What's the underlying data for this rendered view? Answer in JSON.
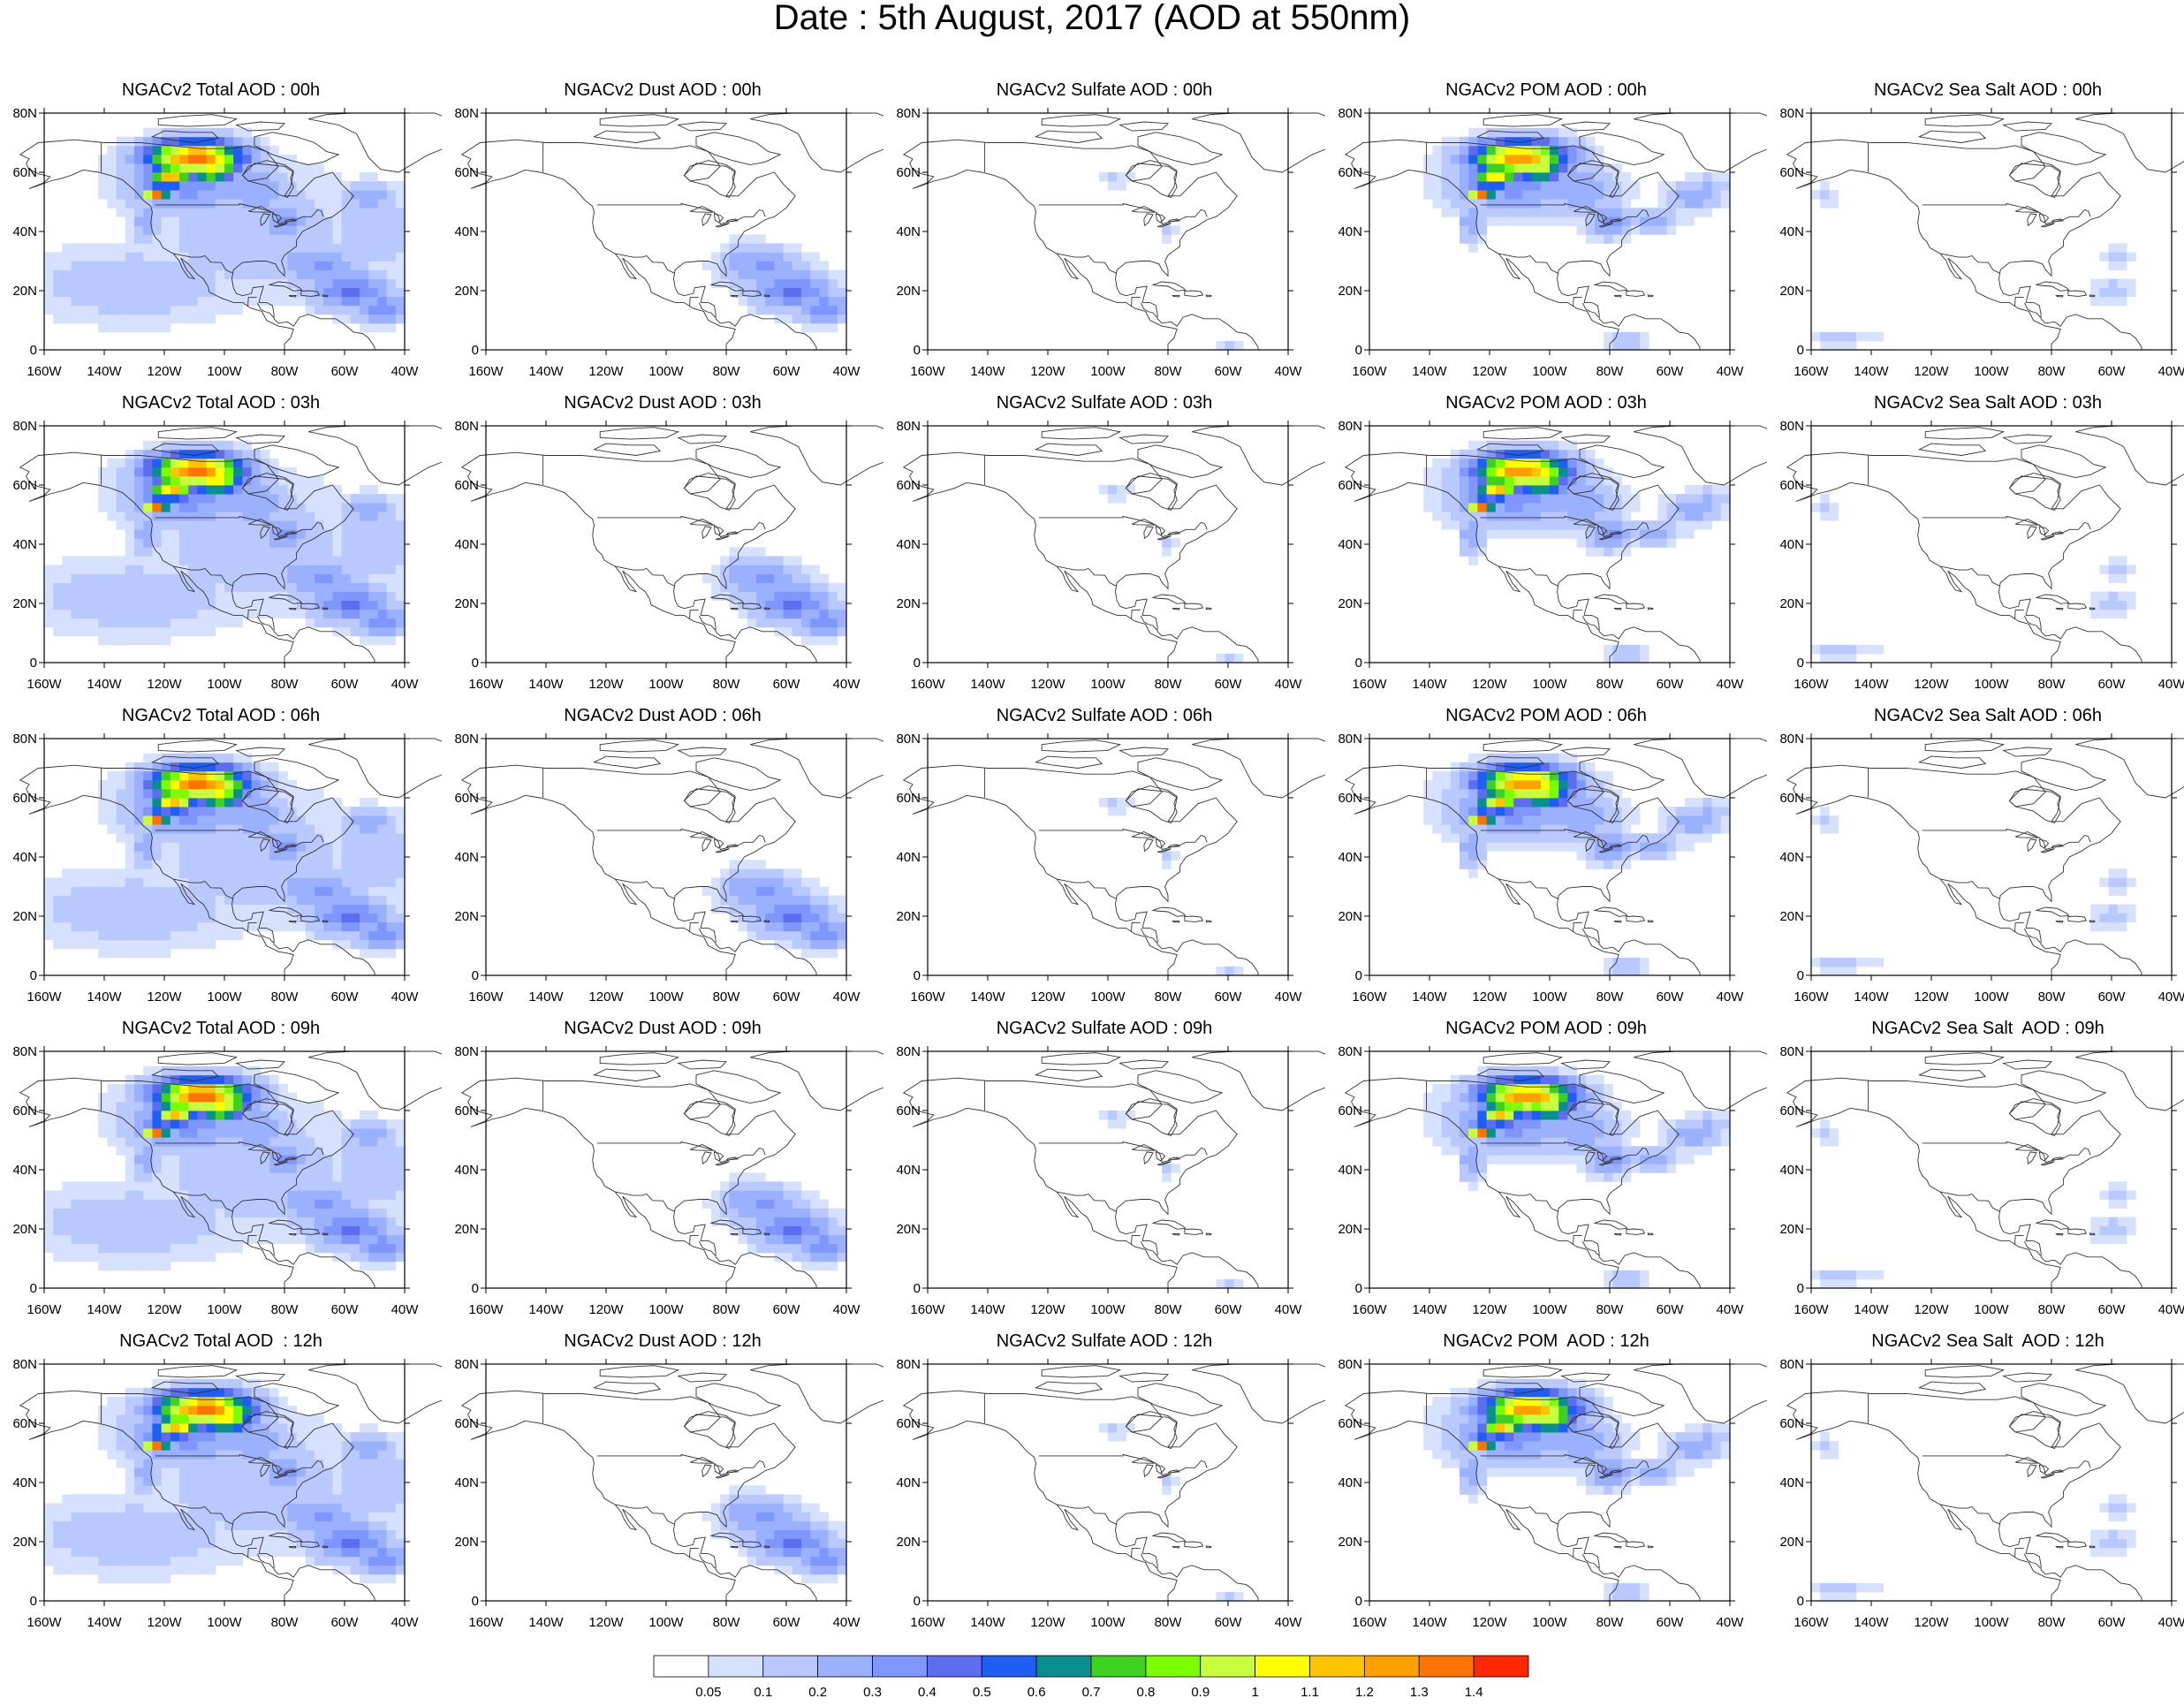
{
  "title": "Date : 5th August, 2017 (AOD at 550nm)",
  "x_ticks": [
    "160W",
    "140W",
    "120W",
    "100W",
    "80W",
    "60W",
    "40W"
  ],
  "y_ticks": [
    "80N",
    "60N",
    "40N",
    "20N",
    "0"
  ],
  "colors": {
    "background": "#ffffff",
    "coastline": "#333333",
    "frame": "#000000"
  },
  "panels": [
    {
      "title": "NGACv2 Total AOD : 00h",
      "product": "total",
      "hour": 0
    },
    {
      "title": "NGACv2 Dust AOD : 00h",
      "product": "dust",
      "hour": 0
    },
    {
      "title": "NGACv2 Sulfate AOD : 00h",
      "product": "sulfate",
      "hour": 0
    },
    {
      "title": "NGACv2 POM AOD : 00h",
      "product": "pom",
      "hour": 0
    },
    {
      "title": "NGACv2 Sea Salt AOD : 00h",
      "product": "seasalt",
      "hour": 0
    },
    {
      "title": "NGACv2 Total AOD : 03h",
      "product": "total",
      "hour": 3
    },
    {
      "title": "NGACv2 Dust AOD : 03h",
      "product": "dust",
      "hour": 3
    },
    {
      "title": "NGACv2 Sulfate AOD : 03h",
      "product": "sulfate",
      "hour": 3
    },
    {
      "title": "NGACv2 POM AOD : 03h",
      "product": "pom",
      "hour": 3
    },
    {
      "title": "NGACv2 Sea Salt AOD : 03h",
      "product": "seasalt",
      "hour": 3
    },
    {
      "title": "NGACv2 Total AOD : 06h",
      "product": "total",
      "hour": 6
    },
    {
      "title": "NGACv2 Dust AOD : 06h",
      "product": "dust",
      "hour": 6
    },
    {
      "title": "NGACv2 Sulfate AOD : 06h",
      "product": "sulfate",
      "hour": 6
    },
    {
      "title": "NGACv2 POM AOD : 06h",
      "product": "pom",
      "hour": 6
    },
    {
      "title": "NGACv2 Sea Salt AOD : 06h",
      "product": "seasalt",
      "hour": 6
    },
    {
      "title": "NGACv2 Total AOD : 09h",
      "product": "total",
      "hour": 9
    },
    {
      "title": "NGACv2 Dust AOD : 09h",
      "product": "dust",
      "hour": 9
    },
    {
      "title": "NGACv2 Sulfate AOD : 09h",
      "product": "sulfate",
      "hour": 9
    },
    {
      "title": "NGACv2 POM AOD : 09h",
      "product": "pom",
      "hour": 9
    },
    {
      "title": "NGACv2 Sea Salt  AOD : 09h",
      "product": "seasalt",
      "hour": 9
    },
    {
      "title": "NGACv2 Total AOD  : 12h",
      "product": "total",
      "hour": 12
    },
    {
      "title": "NGACv2 Dust AOD : 12h",
      "product": "dust",
      "hour": 12
    },
    {
      "title": "NGACv2 Sulfate AOD : 12h",
      "product": "sulfate",
      "hour": 12
    },
    {
      "title": "NGACv2 POM  AOD : 12h",
      "product": "pom",
      "hour": 12
    },
    {
      "title": "NGACv2 Sea Salt  AOD : 12h",
      "product": "seasalt",
      "hour": 12
    }
  ],
  "colorbar": {
    "labels": [
      "0.05",
      "0.1",
      "0.2",
      "0.3",
      "0.4",
      "0.5",
      "0.6",
      "0.7",
      "0.8",
      "0.9",
      "1",
      "1.1",
      "1.2",
      "1.3",
      "1.4"
    ],
    "colors": [
      "#ffffff",
      "#d6e0ff",
      "#b9c9ff",
      "#9bb1ff",
      "#7f96ff",
      "#5d6df0",
      "#1f5ef5",
      "#0a8f8f",
      "#3fd11f",
      "#7bff00",
      "#c8ff3c",
      "#ffff00",
      "#ffc400",
      "#ffa000",
      "#ff7400",
      "#ff2800"
    ]
  }
}
